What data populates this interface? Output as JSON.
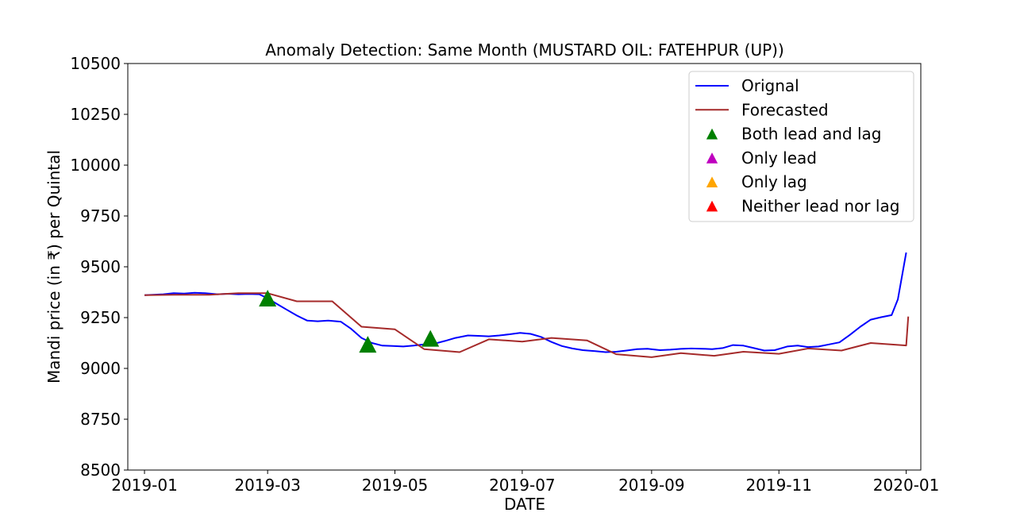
{
  "chart_data": {
    "type": "line",
    "title": "Anomaly Detection: Same Month (MUSTARD OIL: FATEHPUR (UP))",
    "xlabel": "DATE",
    "ylabel": "Mandi price (in ₹) per Quintal",
    "ylim": [
      8500,
      10500
    ],
    "xlim": [
      "2018-12-24",
      "2020-01-08"
    ],
    "yticks": [
      8500,
      8750,
      9000,
      9250,
      9500,
      9750,
      10000,
      10250,
      10500
    ],
    "xticks": [
      "2019-01",
      "2019-03",
      "2019-05",
      "2019-07",
      "2019-09",
      "2019-11",
      "2020-01"
    ],
    "grid": false,
    "legend_position": "top-right",
    "series": [
      {
        "name": "Orignal",
        "color": "#0000ff",
        "kind": "line",
        "points": [
          [
            "2019-01-01",
            9360
          ],
          [
            "2019-01-05",
            9362
          ],
          [
            "2019-01-10",
            9365
          ],
          [
            "2019-01-15",
            9370
          ],
          [
            "2019-01-20",
            9368
          ],
          [
            "2019-01-25",
            9372
          ],
          [
            "2019-01-30",
            9370
          ],
          [
            "2019-02-05",
            9365
          ],
          [
            "2019-02-10",
            9367
          ],
          [
            "2019-02-15",
            9365
          ],
          [
            "2019-02-20",
            9366
          ],
          [
            "2019-02-25",
            9365
          ],
          [
            "2019-03-01",
            9345
          ],
          [
            "2019-03-05",
            9320
          ],
          [
            "2019-03-10",
            9290
          ],
          [
            "2019-03-15",
            9260
          ],
          [
            "2019-03-20",
            9235
          ],
          [
            "2019-03-25",
            9232
          ],
          [
            "2019-03-30",
            9235
          ],
          [
            "2019-04-05",
            9230
          ],
          [
            "2019-04-10",
            9195
          ],
          [
            "2019-04-15",
            9150
          ],
          [
            "2019-04-20",
            9125
          ],
          [
            "2019-04-25",
            9112
          ],
          [
            "2019-04-30",
            9110
          ],
          [
            "2019-05-05",
            9108
          ],
          [
            "2019-05-10",
            9112
          ],
          [
            "2019-05-15",
            9118
          ],
          [
            "2019-05-20",
            9122
          ],
          [
            "2019-05-25",
            9135
          ],
          [
            "2019-05-30",
            9150
          ],
          [
            "2019-06-05",
            9162
          ],
          [
            "2019-06-10",
            9160
          ],
          [
            "2019-06-15",
            9158
          ],
          [
            "2019-06-20",
            9162
          ],
          [
            "2019-06-25",
            9168
          ],
          [
            "2019-06-30",
            9175
          ],
          [
            "2019-07-05",
            9170
          ],
          [
            "2019-07-10",
            9155
          ],
          [
            "2019-07-15",
            9130
          ],
          [
            "2019-07-20",
            9110
          ],
          [
            "2019-07-25",
            9098
          ],
          [
            "2019-07-30",
            9090
          ],
          [
            "2019-08-05",
            9085
          ],
          [
            "2019-08-10",
            9080
          ],
          [
            "2019-08-15",
            9082
          ],
          [
            "2019-08-20",
            9088
          ],
          [
            "2019-08-25",
            9095
          ],
          [
            "2019-08-30",
            9097
          ],
          [
            "2019-09-05",
            9090
          ],
          [
            "2019-09-10",
            9092
          ],
          [
            "2019-09-15",
            9096
          ],
          [
            "2019-09-20",
            9098
          ],
          [
            "2019-09-25",
            9097
          ],
          [
            "2019-09-30",
            9095
          ],
          [
            "2019-10-05",
            9100
          ],
          [
            "2019-10-10",
            9115
          ],
          [
            "2019-10-15",
            9112
          ],
          [
            "2019-10-20",
            9100
          ],
          [
            "2019-10-25",
            9088
          ],
          [
            "2019-10-30",
            9090
          ],
          [
            "2019-11-05",
            9108
          ],
          [
            "2019-11-10",
            9112
          ],
          [
            "2019-11-15",
            9105
          ],
          [
            "2019-11-20",
            9108
          ],
          [
            "2019-11-25",
            9118
          ],
          [
            "2019-11-30",
            9128
          ],
          [
            "2019-12-05",
            9165
          ],
          [
            "2019-12-10",
            9205
          ],
          [
            "2019-12-15",
            9240
          ],
          [
            "2019-12-20",
            9252
          ],
          [
            "2019-12-25",
            9262
          ],
          [
            "2019-12-28",
            9340
          ],
          [
            "2020-01-01",
            9570
          ]
        ]
      },
      {
        "name": "Forecasted",
        "color": "#a52a2a",
        "kind": "line",
        "points": [
          [
            "2019-01-01",
            9360
          ],
          [
            "2019-01-15",
            9362
          ],
          [
            "2019-02-01",
            9362
          ],
          [
            "2019-02-15",
            9370
          ],
          [
            "2019-03-01",
            9370
          ],
          [
            "2019-03-15",
            9330
          ],
          [
            "2019-04-01",
            9330
          ],
          [
            "2019-04-15",
            9205
          ],
          [
            "2019-05-01",
            9192
          ],
          [
            "2019-05-15",
            9095
          ],
          [
            "2019-06-01",
            9080
          ],
          [
            "2019-06-15",
            9143
          ],
          [
            "2019-07-01",
            9132
          ],
          [
            "2019-07-15",
            9150
          ],
          [
            "2019-08-01",
            9138
          ],
          [
            "2019-08-15",
            9070
          ],
          [
            "2019-09-01",
            9055
          ],
          [
            "2019-09-15",
            9075
          ],
          [
            "2019-10-01",
            9062
          ],
          [
            "2019-10-15",
            9082
          ],
          [
            "2019-11-01",
            9072
          ],
          [
            "2019-11-15",
            9098
          ],
          [
            "2019-12-01",
            9088
          ],
          [
            "2019-12-15",
            9125
          ],
          [
            "2020-01-01",
            9113
          ],
          [
            "2020-01-02",
            9255
          ]
        ]
      },
      {
        "name": "Both lead and lag",
        "color": "#008000",
        "kind": "marker",
        "points": [
          [
            "2019-03-01",
            9340
          ],
          [
            "2019-04-18",
            9113
          ],
          [
            "2019-05-18",
            9142
          ]
        ]
      },
      {
        "name": "Only lead",
        "color": "#bf00bf",
        "kind": "marker",
        "points": []
      },
      {
        "name": "Only lag",
        "color": "#ffa500",
        "kind": "marker",
        "points": []
      },
      {
        "name": "Neither lead nor lag",
        "color": "#ff0000",
        "kind": "marker",
        "points": []
      }
    ]
  }
}
